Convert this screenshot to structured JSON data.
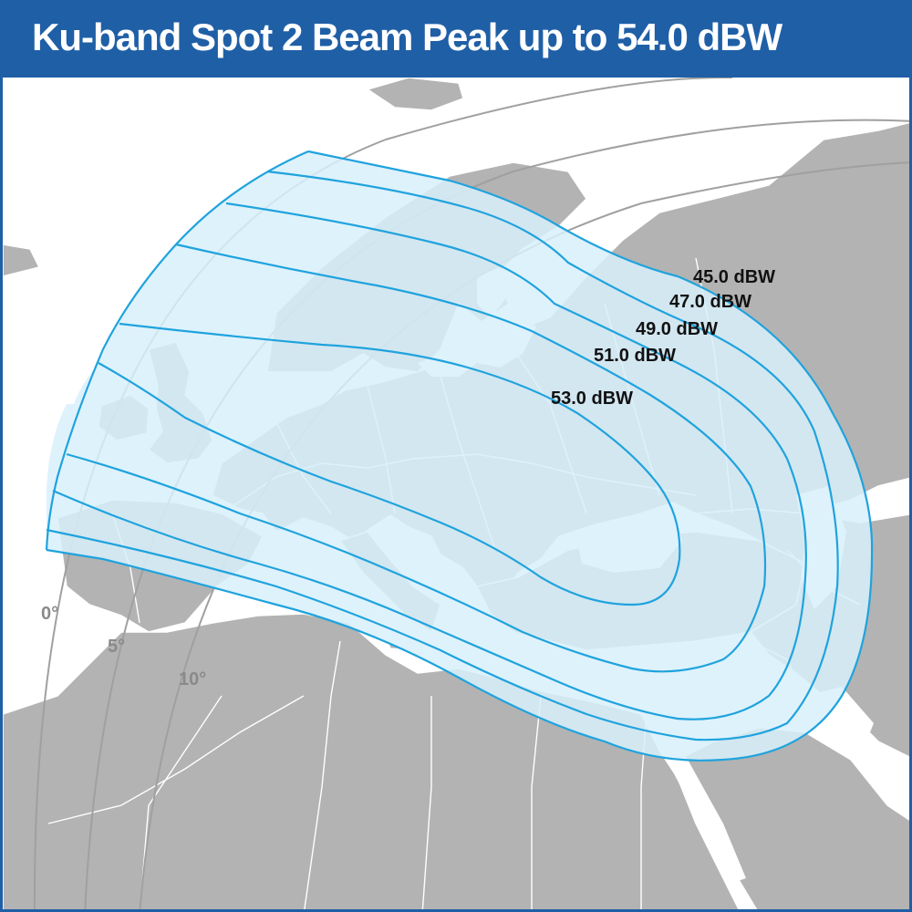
{
  "title": "Ku-band Spot 2 Beam Peak up to 54.0 dBW",
  "colors": {
    "title_bar": "#1f5fa6",
    "sea": "#ffffff",
    "land": "#b3b3b3",
    "borders": "#ffffff",
    "coverage_fill": "#d8f0fb",
    "contour_line": "#1fa3dd",
    "longitude_line": "#a0a0a0"
  },
  "contours": [
    {
      "level": 45.0,
      "label": "45.0 dBW"
    },
    {
      "level": 47.0,
      "label": "47.0 dBW"
    },
    {
      "level": 49.0,
      "label": "49.0 dBW"
    },
    {
      "level": 51.0,
      "label": "51.0 dBW"
    },
    {
      "level": 53.0,
      "label": "53.0 dBW"
    }
  ],
  "longitude_labels": [
    "0°",
    "5°",
    "10°"
  ]
}
